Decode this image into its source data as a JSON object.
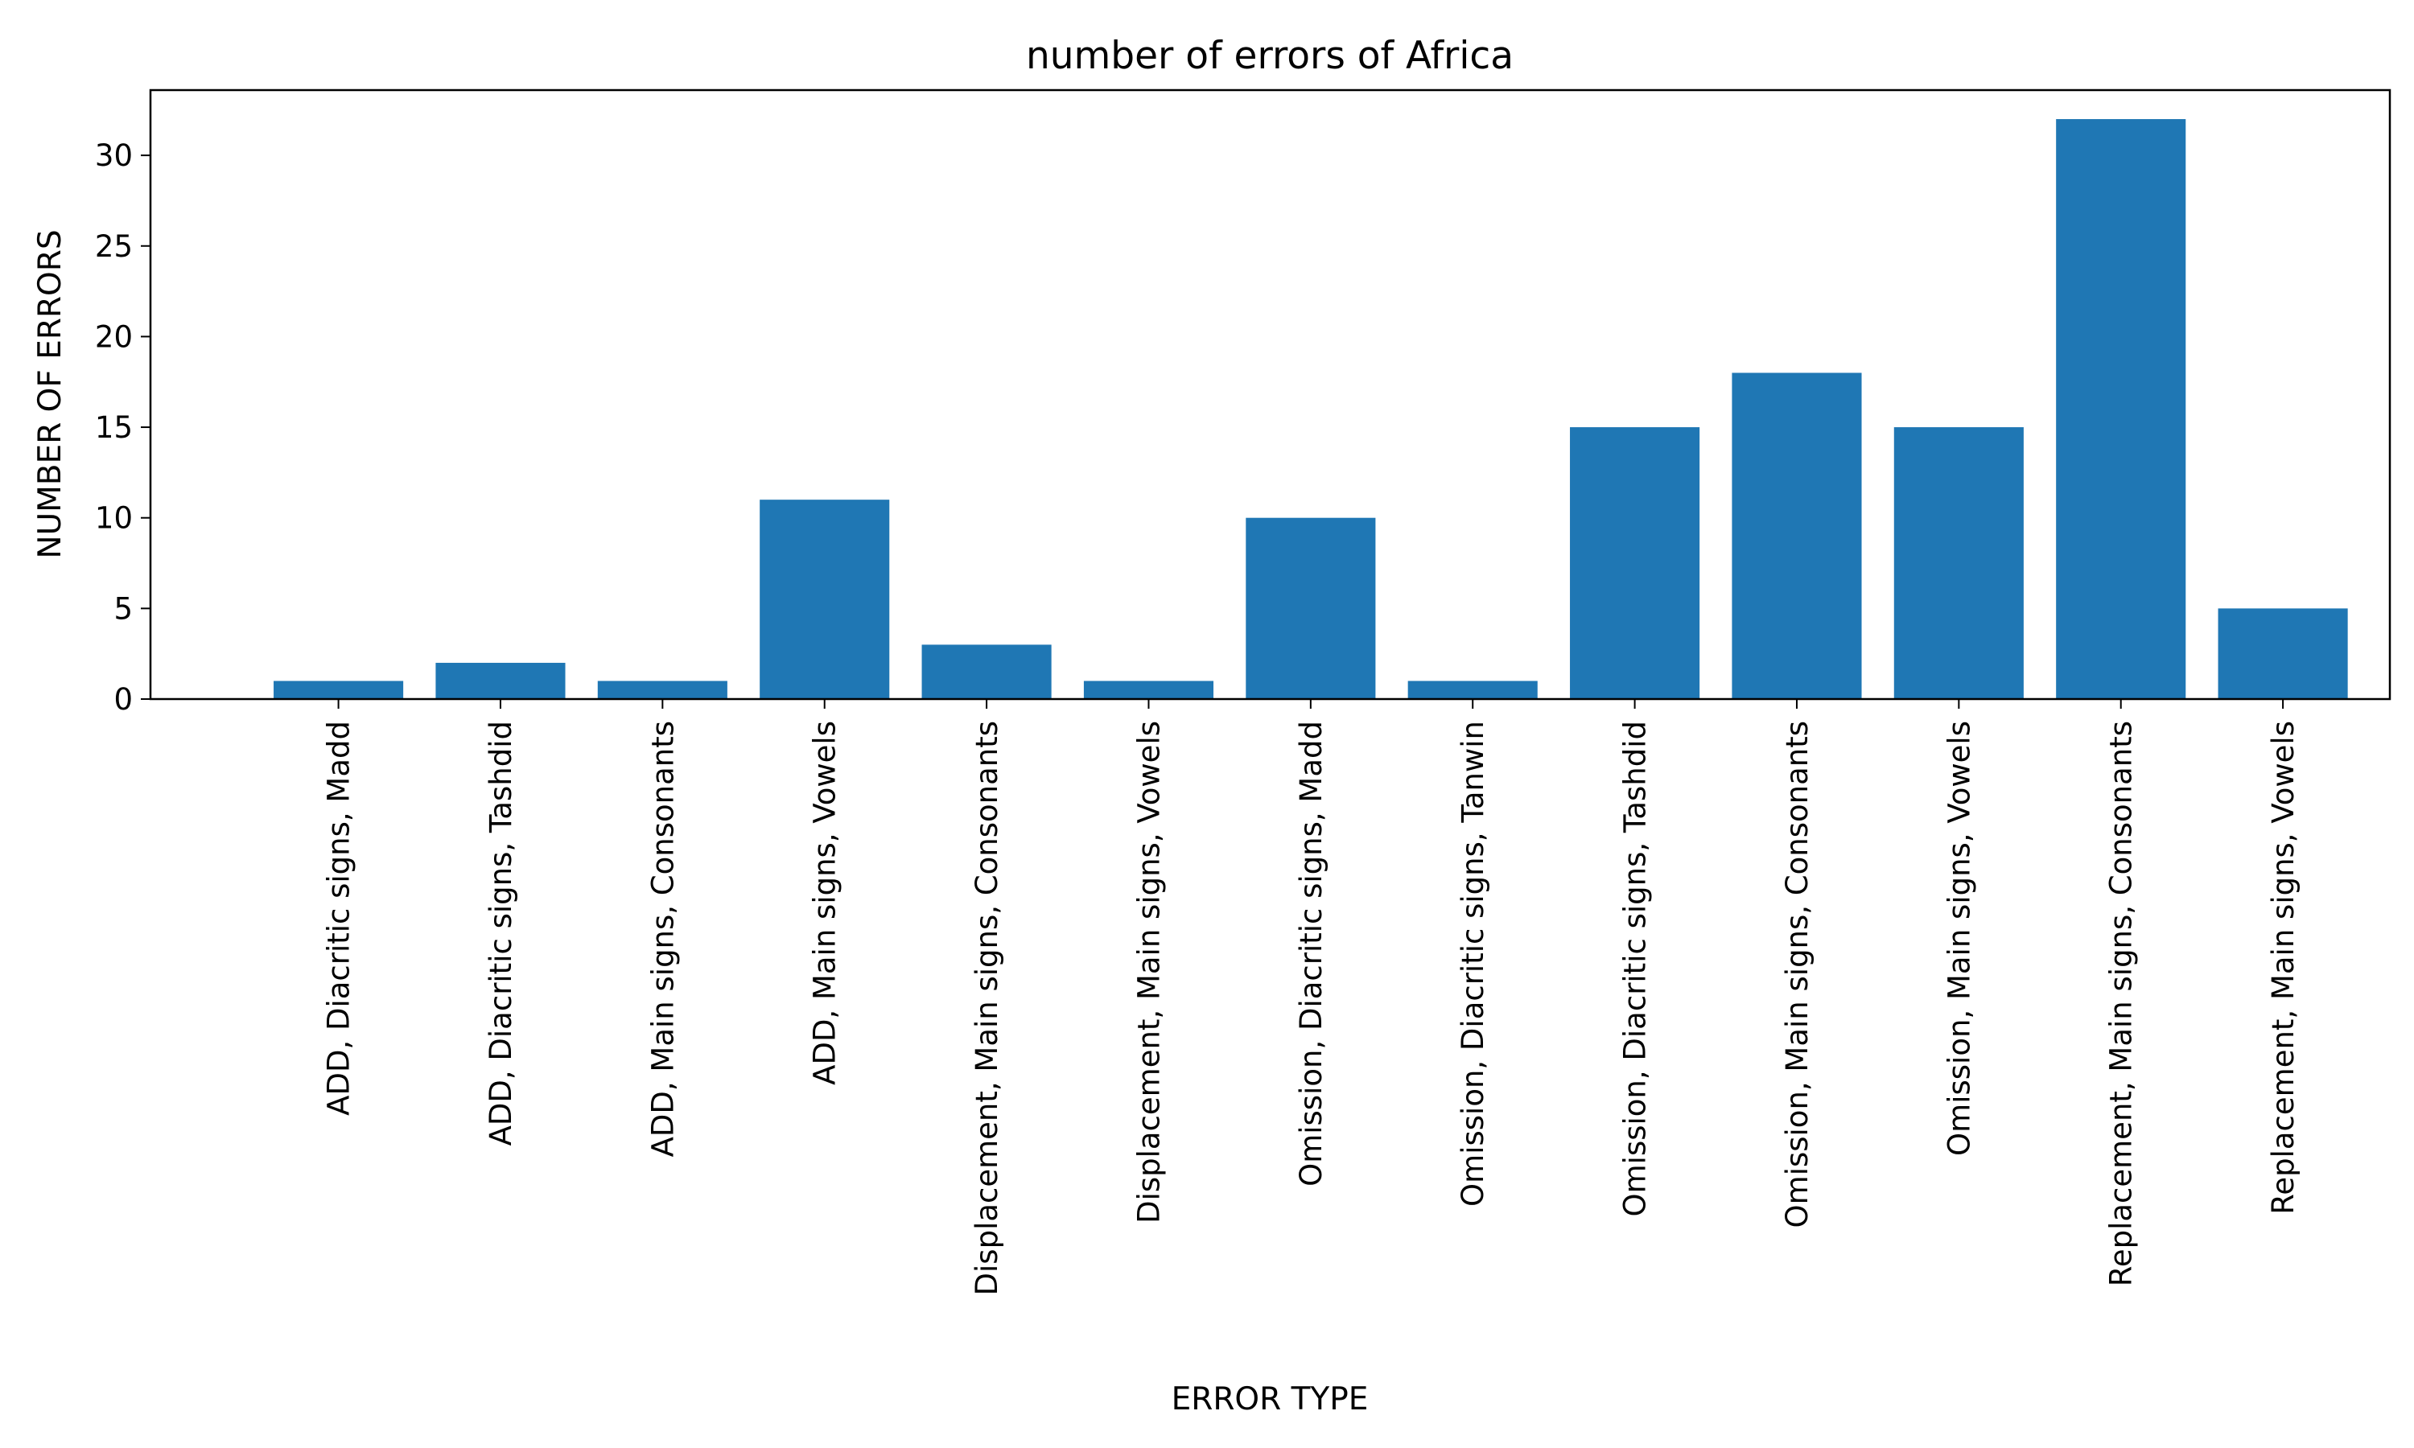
{
  "chart_data": {
    "type": "bar",
    "title": "number of errors of Africa",
    "xlabel": "ERROR TYPE",
    "ylabel": "NUMBER OF ERRORS",
    "categories": [
      "ADD, Diacritic signs, Madd",
      "ADD, Diacritic signs, Tashdid",
      "ADD, Main signs, Consonants",
      "ADD, Main signs, Vowels",
      "Displacement, Main signs, Consonants",
      "Displacement, Main signs, Vowels",
      "Omission, Diacritic signs, Madd",
      "Omission, Diacritic signs, Tanwin",
      "Omission, Diacritic signs, Tashdid",
      "Omission, Main signs, Consonants",
      "Omission, Main signs, Vowels",
      "Replacement, Main signs, Consonants",
      "Replacement, Main signs, Vowels"
    ],
    "values": [
      1,
      2,
      1,
      11,
      3,
      1,
      10,
      1,
      15,
      18,
      15,
      32,
      5
    ],
    "ylim": [
      0,
      33.6
    ],
    "yticks": [
      0,
      5,
      10,
      15,
      20,
      25,
      30
    ],
    "grid": false,
    "bar_color": "#1f77b4"
  }
}
